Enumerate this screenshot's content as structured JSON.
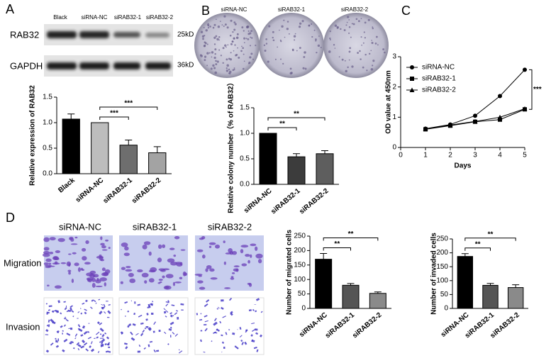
{
  "figure": {
    "panels": [
      "A",
      "B",
      "C",
      "D"
    ],
    "blot_lanes": [
      "Black",
      "siRNA-NC",
      "siRAB32-1",
      "siRAB32-2"
    ],
    "blot_proteins": [
      "RAB32",
      "GAPDH"
    ],
    "blot_sizes": [
      "25kD",
      "36kD"
    ],
    "plate_labels": [
      "siRNA-NC",
      "siRAB32-1",
      "siRAB32-2"
    ],
    "image_columns": [
      "siRNA-NC",
      "siRAB32-1",
      "siRAB32-2"
    ],
    "image_rows": [
      "Migration",
      "Invasion"
    ]
  },
  "chart_data": [
    {
      "type": "bar",
      "y_label": "Relative expression of RAB32",
      "categories": [
        "Black",
        "siRNA-NC",
        "siRAB32-1",
        "siRAB32-2"
      ],
      "values": [
        1.07,
        1.0,
        0.56,
        0.41
      ],
      "errors": [
        0.1,
        0,
        0.1,
        0.12
      ],
      "colors": [
        "#000000",
        "#bdbdbd",
        "#6e6e6e",
        "#a3a3a3"
      ],
      "ylim": [
        0,
        1.5
      ],
      "yticks": [
        {
          "value": 0,
          "label": "0.0"
        },
        {
          "value": 0.5,
          "label": "0.5"
        },
        {
          "value": 1,
          "label": "1.0"
        },
        {
          "value": 1.5,
          "label": "1.5"
        }
      ],
      "annotations": [
        "***",
        "***"
      ]
    },
    {
      "type": "bar",
      "y_label": "Relative colony number（% of RAB32）",
      "categories": [
        "siRNA-NC",
        "siRAB32-1",
        "siRAB32-2"
      ],
      "values": [
        1.0,
        0.54,
        0.6
      ],
      "errors": [
        0,
        0.06,
        0.06
      ],
      "colors": [
        "#000000",
        "#3c3c3c",
        "#5e5e5e"
      ],
      "ylim": [
        0,
        1.5
      ],
      "yticks": [
        {
          "value": 0,
          "label": "0.0"
        },
        {
          "value": 0.5,
          "label": "0.5"
        },
        {
          "value": 1,
          "label": "1.0"
        },
        {
          "value": 1.5,
          "label": "1.5"
        }
      ],
      "annotations": [
        "**",
        "**"
      ]
    },
    {
      "type": "line",
      "x_label": "Days",
      "y_label": "OD value at 450nm",
      "x": [
        1,
        2,
        3,
        4,
        5
      ],
      "series": [
        {
          "name": "siRNA-NC",
          "color": "#000000",
          "values": [
            0.62,
            0.76,
            1.05,
            1.7,
            2.57
          ]
        },
        {
          "name": "siRAB32-1",
          "color": "#000000",
          "values": [
            0.6,
            0.72,
            0.85,
            0.92,
            1.26
          ]
        },
        {
          "name": "siRAB32-2",
          "color": "#000000",
          "values": [
            0.61,
            0.74,
            0.86,
            1.0,
            1.28
          ]
        }
      ],
      "xlim": [
        0,
        5
      ],
      "xticks": [
        0,
        1,
        2,
        3,
        4,
        5
      ],
      "ylim": [
        0,
        3
      ],
      "yticks": [
        0,
        1,
        2,
        3
      ],
      "annotations": [
        "***"
      ]
    },
    {
      "type": "bar",
      "y_label": "Number of migrated cells",
      "categories": [
        "siRNA-NC",
        "siRAB32-1",
        "siRAB32-2"
      ],
      "values": [
        170,
        80,
        52
      ],
      "errors": [
        20,
        6,
        5
      ],
      "colors": [
        "#000000",
        "#555555",
        "#8a8a8a"
      ],
      "ylim": [
        0,
        250
      ],
      "yticks": [
        0,
        50,
        100,
        150,
        200,
        250
      ],
      "annotations": [
        "**",
        "**"
      ]
    },
    {
      "type": "bar",
      "y_label": "Number of invaded cells",
      "categories": [
        "siRNA-NC",
        "siRAB32-1",
        "siRAB32-2"
      ],
      "values": [
        187,
        83,
        75
      ],
      "errors": [
        10,
        7,
        10
      ],
      "colors": [
        "#000000",
        "#555555",
        "#8a8a8a"
      ],
      "ylim": [
        0,
        250
      ],
      "yticks": [
        0,
        50,
        100,
        150,
        200,
        250
      ],
      "annotations": [
        "**",
        "**"
      ]
    }
  ]
}
